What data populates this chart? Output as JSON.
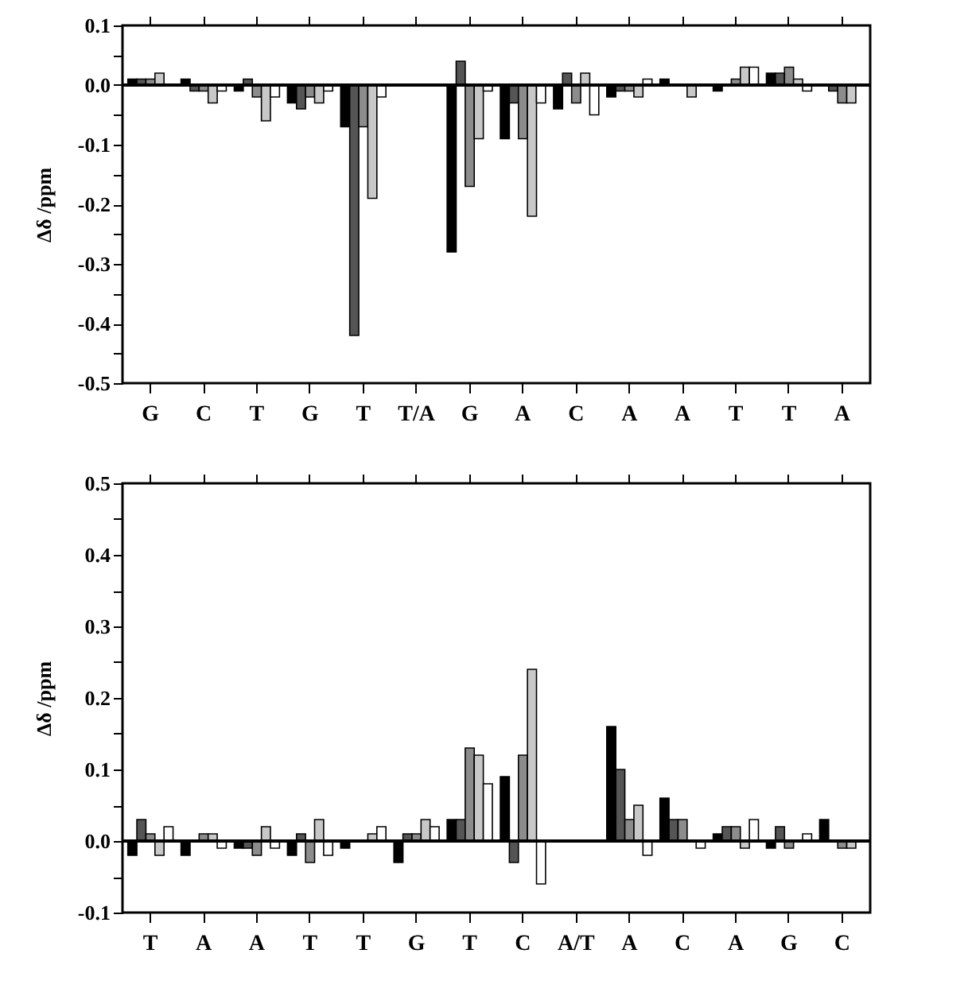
{
  "chart_data": [
    {
      "type": "bar",
      "ylabel": "Δδ /ppm",
      "categories": [
        "G",
        "C",
        "T",
        "G",
        "T",
        "T/A",
        "G",
        "A",
        "C",
        "A",
        "A",
        "T",
        "T",
        "A"
      ],
      "series": [
        {
          "color": "#000000",
          "values": [
            0.01,
            0.01,
            -0.01,
            -0.03,
            -0.07,
            null,
            -0.28,
            -0.09,
            -0.04,
            -0.02,
            0.01,
            -0.01,
            0.02,
            null
          ]
        },
        {
          "color": "#555555",
          "values": [
            0.01,
            -0.01,
            0.01,
            -0.04,
            -0.42,
            null,
            0.04,
            -0.03,
            0.02,
            -0.01,
            null,
            null,
            0.02,
            -0.01
          ]
        },
        {
          "color": "#8c8c8c",
          "values": [
            0.01,
            -0.01,
            -0.02,
            -0.02,
            -0.07,
            null,
            -0.17,
            -0.09,
            -0.03,
            -0.01,
            null,
            0.01,
            0.03,
            -0.03
          ]
        },
        {
          "color": "#c8c8c8",
          "values": [
            0.02,
            -0.03,
            -0.06,
            -0.03,
            -0.19,
            null,
            -0.09,
            -0.22,
            0.02,
            -0.02,
            -0.02,
            0.03,
            0.01,
            -0.03
          ]
        },
        {
          "color": "#ffffff",
          "values": [
            null,
            -0.01,
            -0.02,
            -0.01,
            -0.02,
            null,
            -0.01,
            -0.03,
            -0.05,
            0.01,
            null,
            0.03,
            -0.01,
            null
          ]
        }
      ],
      "ylim": [
        -0.5,
        0.1
      ],
      "yticks": [
        -0.5,
        {
          "value": -0.45,
          "label": null
        },
        -0.4,
        {
          "value": -0.35,
          "label": null
        },
        -0.3,
        {
          "value": -0.25,
          "label": null
        },
        -0.2,
        {
          "value": -0.15,
          "label": null
        },
        -0.1,
        {
          "value": -0.05,
          "label": null
        },
        {
          "value": 0,
          "label": "0.0"
        },
        {
          "value": 0.05,
          "label": null
        },
        0.1
      ],
      "ref_lines": [
        {
          "axis": "y",
          "value": 0,
          "color": "#000000"
        }
      ],
      "grid": false
    },
    {
      "type": "bar",
      "ylabel": "Δδ /ppm",
      "categories": [
        "T",
        "A",
        "A",
        "T",
        "T",
        "G",
        "T",
        "C",
        "A/T",
        "A",
        "C",
        "A",
        "G",
        "C"
      ],
      "series": [
        {
          "color": "#000000",
          "values": [
            -0.02,
            -0.02,
            -0.01,
            -0.02,
            -0.01,
            -0.03,
            0.03,
            0.09,
            null,
            0.16,
            0.06,
            0.01,
            -0.01,
            0.03
          ]
        },
        {
          "color": "#555555",
          "values": [
            0.03,
            null,
            -0.01,
            0.01,
            null,
            0.01,
            0.03,
            -0.03,
            null,
            0.1,
            0.03,
            0.02,
            0.02,
            null
          ]
        },
        {
          "color": "#8c8c8c",
          "values": [
            0.01,
            0.01,
            -0.02,
            -0.03,
            null,
            0.01,
            0.13,
            0.12,
            null,
            0.03,
            0.03,
            0.02,
            -0.01,
            -0.01
          ]
        },
        {
          "color": "#c8c8c8",
          "values": [
            -0.02,
            0.01,
            0.02,
            0.03,
            0.01,
            0.03,
            0.12,
            0.24,
            null,
            0.05,
            null,
            -0.01,
            null,
            -0.01
          ]
        },
        {
          "color": "#ffffff",
          "values": [
            0.02,
            -0.01,
            -0.01,
            -0.02,
            0.02,
            0.02,
            0.08,
            -0.06,
            null,
            -0.02,
            -0.01,
            0.03,
            0.01,
            null
          ]
        }
      ],
      "ylim": [
        -0.1,
        0.5
      ],
      "yticks": [
        -0.1,
        {
          "value": -0.05,
          "label": null
        },
        {
          "value": 0,
          "label": "0.0"
        },
        {
          "value": 0.05,
          "label": null
        },
        0.1,
        {
          "value": 0.15,
          "label": null
        },
        0.2,
        {
          "value": 0.25,
          "label": null
        },
        0.3,
        {
          "value": 0.35,
          "label": null
        },
        0.4,
        {
          "value": 0.45,
          "label": null
        },
        0.5
      ],
      "ref_lines": [
        {
          "axis": "y",
          "value": 0,
          "color": "#000000"
        }
      ],
      "grid": false
    }
  ]
}
